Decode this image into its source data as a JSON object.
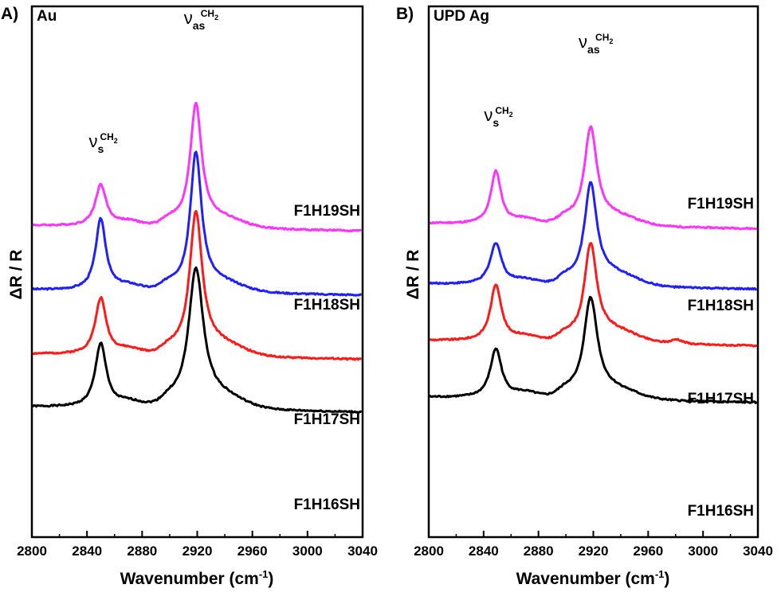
{
  "chart_data": [
    {
      "panel_label": "A)",
      "panel_title": "Au",
      "type": "line",
      "xlabel_main": "Wavenumber (cm",
      "xlabel_sup": "-1",
      "xlabel_end": ")",
      "ylabel": "ΔR / R",
      "xlim": [
        2800,
        3040
      ],
      "xticks": [
        "2800",
        "2840",
        "2880",
        "2920",
        "2960",
        "3000",
        "3040"
      ],
      "peak_labels": [
        {
          "nu": "ν",
          "sub": "s",
          "sup": "CH",
          "sup2": "2",
          "at_wavenumber": 2850
        },
        {
          "nu": "ν",
          "sub": "as",
          "sup": "CH",
          "sup2": "2",
          "at_wavenumber": 2919
        }
      ],
      "series": [
        {
          "name": "F1H19SH",
          "color": "#ff33ff",
          "baseline": 0.7,
          "peaks": [
            {
              "center": 2850,
              "height": 0.55,
              "width": 4.8
            },
            {
              "center": 2919,
              "height": 1.6,
              "width": 5.0
            }
          ],
          "shoulder": 0.12,
          "noise_seed": 4
        },
        {
          "name": "F1H18SH",
          "color": "#1f1fff",
          "baseline": -0.15,
          "peaks": [
            {
              "center": 2850,
              "height": 0.95,
              "width": 4.5
            },
            {
              "center": 2919,
              "height": 1.8,
              "width": 5.0
            }
          ],
          "shoulder": 0.12,
          "noise_seed": 3
        },
        {
          "name": "F1H17SH",
          "color": "#ff1a1a",
          "baseline": -1.0,
          "peaks": [
            {
              "center": 2850,
              "height": 0.75,
              "width": 4.8
            },
            {
              "center": 2919,
              "height": 1.85,
              "width": 5.5
            }
          ],
          "shoulder": 0.15,
          "noise_seed": 2
        },
        {
          "name": "F1H16SH",
          "color": "#000000",
          "baseline": -1.7,
          "peaks": [
            {
              "center": 2850,
              "height": 0.85,
              "width": 4.8
            },
            {
              "center": 2919,
              "height": 1.8,
              "width": 6.5
            }
          ],
          "shoulder": 0.15,
          "noise_seed": 1
        }
      ]
    },
    {
      "panel_label": "B)",
      "panel_title": "UPD Ag",
      "type": "line",
      "xlabel_main": "Wavenumber (cm",
      "xlabel_sup": "-1",
      "xlabel_end": ")",
      "ylabel": "ΔR / R",
      "xlim": [
        2800,
        3040
      ],
      "xticks": [
        "2800",
        "2840",
        "2880",
        "2920",
        "2960",
        "3000",
        "3040"
      ],
      "peak_labels": [
        {
          "nu": "ν",
          "sub": "s",
          "sup": "CH",
          "sup2": "2",
          "at_wavenumber": 2849
        },
        {
          "nu": "ν",
          "sub": "as",
          "sup": "CH",
          "sup2": "2",
          "at_wavenumber": 2918
        }
      ],
      "series": [
        {
          "name": "F1H19SH",
          "color": "#ff33ff",
          "baseline": 0.75,
          "peaks": [
            {
              "center": 2849,
              "height": 0.7,
              "width": 4.5
            },
            {
              "center": 2918,
              "height": 1.25,
              "width": 5.5
            }
          ],
          "shoulder": 0.12,
          "noise_seed": 4
        },
        {
          "name": "F1H18SH",
          "color": "#1f1fff",
          "baseline": -0.05,
          "peaks": [
            {
              "center": 2849,
              "height": 0.55,
              "width": 5.0
            },
            {
              "center": 2918,
              "height": 1.3,
              "width": 5.5
            }
          ],
          "shoulder": 0.15,
          "noise_seed": 3
        },
        {
          "name": "F1H17SH",
          "color": "#ff1a1a",
          "baseline": -0.8,
          "peaks": [
            {
              "center": 2849,
              "height": 0.75,
              "width": 4.8
            },
            {
              "center": 2918,
              "height": 1.25,
              "width": 5.5
            }
          ],
          "shoulder": 0.15,
          "bump": {
            "center": 2981,
            "height": 0.06,
            "width": 5
          },
          "noise_seed": 2
        },
        {
          "name": "F1H16SH",
          "color": "#000000",
          "baseline": -1.55,
          "peaks": [
            {
              "center": 2849,
              "height": 0.65,
              "width": 5.0
            },
            {
              "center": 2918,
              "height": 1.3,
              "width": 6.0
            }
          ],
          "shoulder": 0.12,
          "noise_seed": 1
        }
      ]
    }
  ]
}
